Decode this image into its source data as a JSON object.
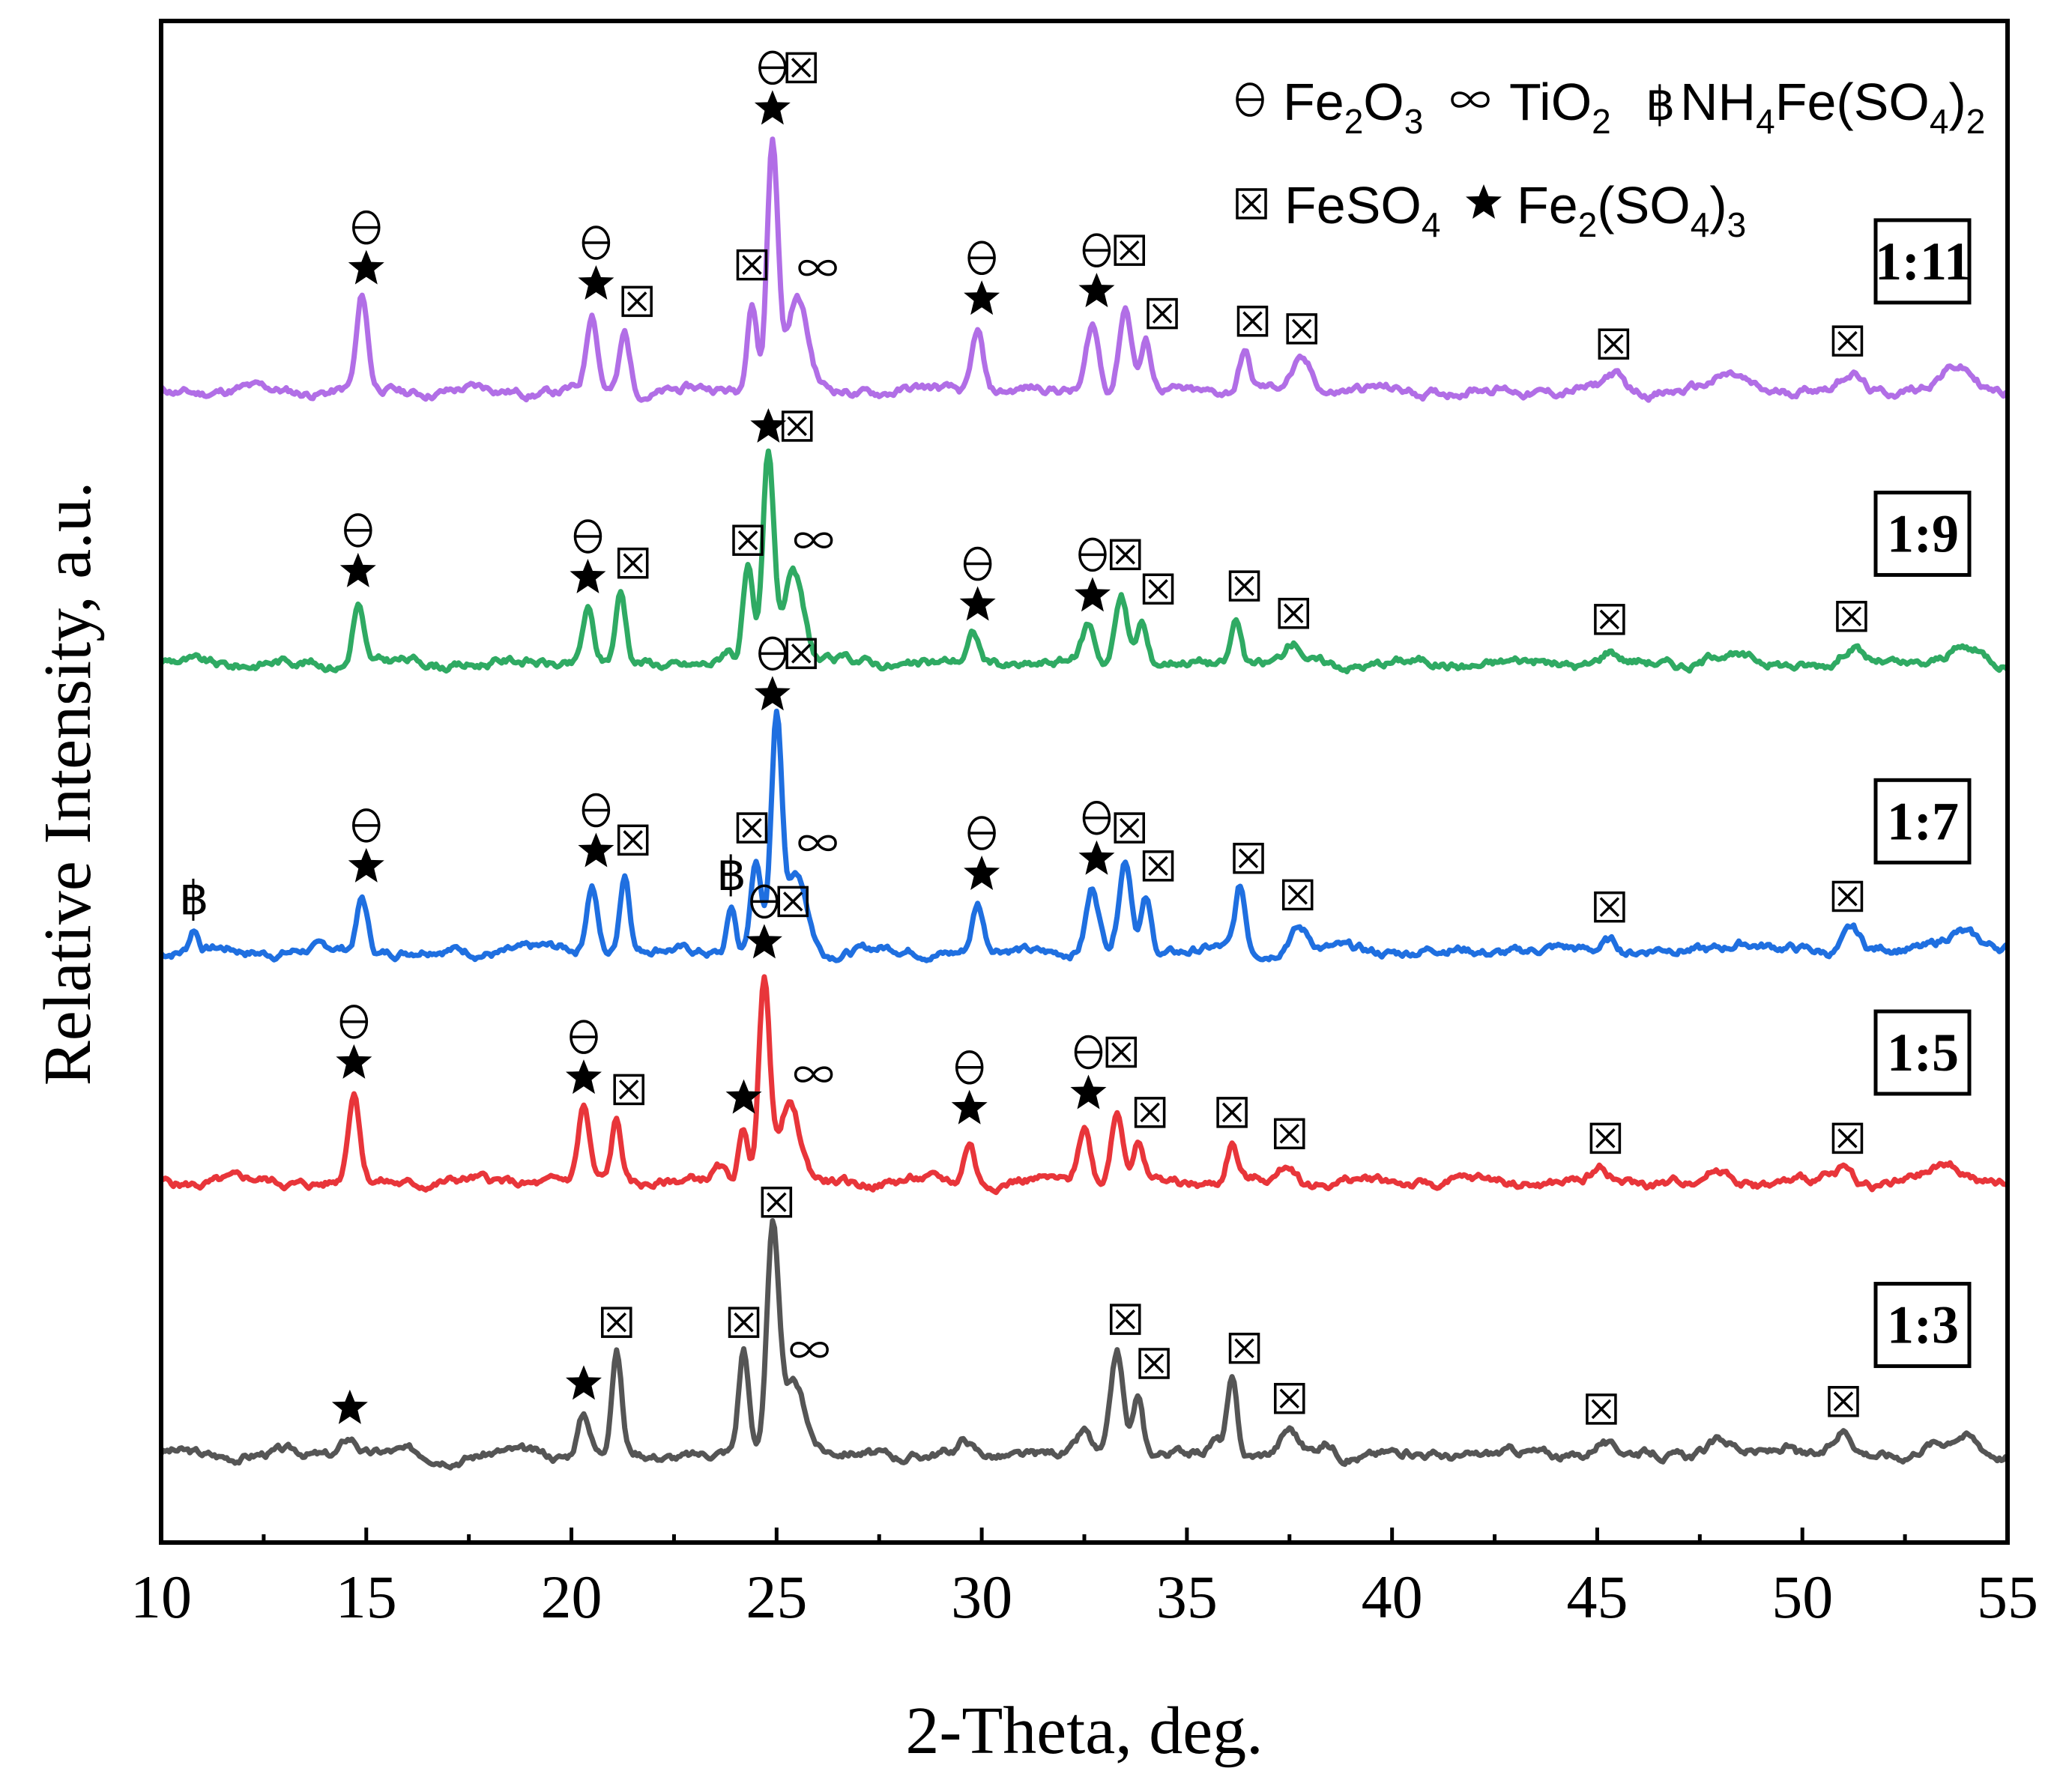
{
  "chart_data": {
    "type": "line",
    "title": "",
    "xlabel": "2-Theta, deg.",
    "ylabel": "Relative Intensity, a.u.",
    "xlim": [
      10,
      55
    ],
    "ylim": [
      0,
      1
    ],
    "x_ticks": [
      10,
      15,
      20,
      25,
      30,
      35,
      40,
      45,
      50,
      55
    ],
    "x_tick_labels": [
      "10",
      "15",
      "20",
      "25",
      "30",
      "35",
      "40",
      "45",
      "50",
      "55"
    ],
    "grid": false,
    "legend_position": "top-right",
    "legend": [
      {
        "symbol": "theta",
        "label": "Fe2O3"
      },
      {
        "symbol": "infinity",
        "label": "TiO2"
      },
      {
        "symbol": "baht",
        "label": "NH4Fe(SO4)2"
      },
      {
        "symbol": "box",
        "label": "FeSO4"
      },
      {
        "symbol": "star",
        "label": "Fe2(SO4)3"
      }
    ],
    "legend_text": {
      "theta_glyph": "⊖",
      "infinity_glyph": "∞",
      "baht_glyph": "฿",
      "fe2o3": {
        "a": "Fe",
        "sub1": "2",
        "b": "O",
        "sub2": "3"
      },
      "tio2": {
        "a": "TiO",
        "sub1": "2"
      },
      "nh4": {
        "a": "NH",
        "sub1": "4",
        "b": "Fe(SO",
        "sub2": "4",
        "c": ")",
        "sub3": "2"
      },
      "feso4": {
        "a": "FeSO",
        "sub1": "4"
      },
      "fe2so43": {
        "a": "Fe",
        "sub1": "2",
        "b": "(SO",
        "sub2": "4",
        "c": ")",
        "sub3": "3"
      }
    },
    "series": [
      {
        "name": "1:3",
        "color": "#555555",
        "baseline": 0.058,
        "noise_seed": 3,
        "peaks": [
          [
            14.6,
            0.012,
            0.2
          ],
          [
            20.3,
            0.028,
            0.15
          ],
          [
            21.1,
            0.068,
            0.12
          ],
          [
            24.2,
            0.068,
            0.12
          ],
          [
            24.9,
            0.143,
            0.14
          ],
          [
            25.4,
            0.048,
            0.3
          ],
          [
            29.6,
            0.008,
            0.15
          ],
          [
            32.5,
            0.013,
            0.15
          ],
          [
            33.3,
            0.068,
            0.15
          ],
          [
            33.8,
            0.038,
            0.12
          ],
          [
            35.7,
            0.01,
            0.15
          ],
          [
            36.1,
            0.049,
            0.12
          ],
          [
            37.5,
            0.015,
            0.2
          ],
          [
            38.4,
            0.008,
            0.2
          ],
          [
            45.1,
            0.009,
            0.2
          ],
          [
            48.0,
            0.008,
            0.3
          ],
          [
            49.6,
            0.006,
            0.2
          ],
          [
            51.0,
            0.014,
            0.2
          ],
          [
            53.1,
            0.008,
            0.3
          ],
          [
            53.9,
            0.012,
            0.3
          ]
        ],
        "markers": [
          {
            "x": 14.6,
            "level": 0.01,
            "symbols": [
              "star"
            ]
          },
          {
            "x": 20.3,
            "level": 0.026,
            "symbols": [
              "star"
            ]
          },
          {
            "x": 21.1,
            "level": 0.066,
            "symbols": [
              "box"
            ]
          },
          {
            "x": 24.2,
            "level": 0.066,
            "symbols": [
              "box"
            ]
          },
          {
            "x": 25.0,
            "level": 0.145,
            "symbols": [
              "box"
            ]
          },
          {
            "x": 25.8,
            "level": 0.048,
            "symbols": [
              "infinity"
            ]
          },
          {
            "x": 33.5,
            "level": 0.068,
            "symbols": [
              "box"
            ]
          },
          {
            "x": 34.2,
            "level": 0.039,
            "symbols": [
              "box"
            ]
          },
          {
            "x": 36.4,
            "level": 0.049,
            "symbols": [
              "box"
            ]
          },
          {
            "x": 37.5,
            "level": 0.016,
            "symbols": [
              "box"
            ]
          },
          {
            "x": 45.1,
            "level": 0.009,
            "symbols": [
              "box"
            ]
          },
          {
            "x": 51.0,
            "level": 0.014,
            "symbols": [
              "box"
            ]
          }
        ]
      },
      {
        "name": "1:5",
        "color": "#e8353a",
        "baseline": 0.237,
        "noise_seed": 5,
        "peaks": [
          [
            14.7,
            0.058,
            0.14
          ],
          [
            20.3,
            0.048,
            0.13
          ],
          [
            21.1,
            0.04,
            0.12
          ],
          [
            23.6,
            0.008,
            0.15
          ],
          [
            24.2,
            0.035,
            0.12
          ],
          [
            24.7,
            0.137,
            0.13
          ],
          [
            25.3,
            0.05,
            0.25
          ],
          [
            29.7,
            0.028,
            0.13
          ],
          [
            32.5,
            0.038,
            0.15
          ],
          [
            33.3,
            0.047,
            0.15
          ],
          [
            33.8,
            0.025,
            0.12
          ],
          [
            36.1,
            0.025,
            0.13
          ],
          [
            37.5,
            0.011,
            0.2
          ],
          [
            45.1,
            0.008,
            0.2
          ],
          [
            48.0,
            0.007,
            0.3
          ],
          [
            51.0,
            0.008,
            0.2
          ],
          [
            53.6,
            0.01,
            0.4
          ]
        ],
        "markers": [
          {
            "x": 14.7,
            "level": 0.058,
            "symbols": [
              "star",
              "theta"
            ]
          },
          {
            "x": 20.3,
            "level": 0.048,
            "symbols": [
              "star",
              "theta"
            ]
          },
          {
            "x": 21.4,
            "level": 0.04,
            "symbols": [
              "box"
            ]
          },
          {
            "x": 24.2,
            "level": 0.035,
            "symbols": [
              "star"
            ]
          },
          {
            "x": 24.7,
            "level": 0.137,
            "symbols": [
              "star",
              "theta"
            ],
            "side": {
              "symbol": "box",
              "dx": 0.7
            }
          },
          {
            "x": 25.9,
            "level": 0.05,
            "symbols": [
              "infinity"
            ]
          },
          {
            "x": 29.7,
            "level": 0.028,
            "symbols": [
              "star",
              "theta"
            ]
          },
          {
            "x": 32.6,
            "level": 0.038,
            "symbols": [
              "star",
              "theta"
            ],
            "side": {
              "symbol": "box",
              "dx": 0.8
            }
          },
          {
            "x": 34.1,
            "level": 0.025,
            "symbols": [
              "box"
            ]
          },
          {
            "x": 36.1,
            "level": 0.025,
            "symbols": [
              "box"
            ]
          },
          {
            "x": 37.5,
            "level": 0.011,
            "symbols": [
              "box"
            ]
          },
          {
            "x": 45.2,
            "level": 0.008,
            "symbols": [
              "box"
            ]
          },
          {
            "x": 51.1,
            "level": 0.008,
            "symbols": [
              "box"
            ]
          }
        ]
      },
      {
        "name": "1:7",
        "color": "#1f6fe0",
        "baseline": 0.389,
        "noise_seed": 7,
        "peaks": [
          [
            10.8,
            0.014,
            0.1
          ],
          [
            14.9,
            0.035,
            0.13
          ],
          [
            20.5,
            0.045,
            0.13
          ],
          [
            21.3,
            0.052,
            0.12
          ],
          [
            23.9,
            0.03,
            0.1
          ],
          [
            24.5,
            0.06,
            0.12
          ],
          [
            25.0,
            0.148,
            0.13
          ],
          [
            25.5,
            0.05,
            0.25
          ],
          [
            29.9,
            0.03,
            0.13
          ],
          [
            32.7,
            0.04,
            0.15
          ],
          [
            33.5,
            0.06,
            0.15
          ],
          [
            34.0,
            0.035,
            0.12
          ],
          [
            36.3,
            0.04,
            0.12
          ],
          [
            37.7,
            0.016,
            0.25
          ],
          [
            45.3,
            0.008,
            0.2
          ],
          [
            48.5,
            0.006,
            0.4
          ],
          [
            51.2,
            0.015,
            0.2
          ],
          [
            53.8,
            0.014,
            0.4
          ]
        ],
        "markers": [
          {
            "x": 10.8,
            "level": 0.014,
            "symbols": [
              "baht"
            ]
          },
          {
            "x": 15.0,
            "level": 0.035,
            "symbols": [
              "star",
              "theta"
            ]
          },
          {
            "x": 20.6,
            "level": 0.045,
            "symbols": [
              "star",
              "theta"
            ]
          },
          {
            "x": 21.5,
            "level": 0.052,
            "symbols": [
              "box"
            ]
          },
          {
            "x": 23.9,
            "level": 0.03,
            "symbols": [
              "baht"
            ]
          },
          {
            "x": 24.4,
            "level": 0.06,
            "symbols": [
              "box"
            ]
          },
          {
            "x": 24.9,
            "level": 0.148,
            "symbols": [
              "star",
              "theta"
            ],
            "side": {
              "symbol": "box",
              "dx": 0.7
            }
          },
          {
            "x": 26.0,
            "level": 0.05,
            "symbols": [
              "infinity"
            ]
          },
          {
            "x": 30.0,
            "level": 0.03,
            "symbols": [
              "star",
              "theta"
            ]
          },
          {
            "x": 32.8,
            "level": 0.04,
            "symbols": [
              "star",
              "theta"
            ]
          },
          {
            "x": 33.6,
            "level": 0.06,
            "symbols": [
              "box"
            ]
          },
          {
            "x": 34.3,
            "level": 0.035,
            "symbols": [
              "box"
            ]
          },
          {
            "x": 36.5,
            "level": 0.04,
            "symbols": [
              "box"
            ]
          },
          {
            "x": 37.7,
            "level": 0.016,
            "symbols": [
              "box"
            ]
          },
          {
            "x": 45.3,
            "level": 0.008,
            "symbols": [
              "box"
            ]
          },
          {
            "x": 51.1,
            "level": 0.015,
            "symbols": [
              "box"
            ]
          }
        ]
      },
      {
        "name": "1:9",
        "color": "#2faa63",
        "baseline": 0.578,
        "noise_seed": 9,
        "peaks": [
          [
            14.8,
            0.04,
            0.13
          ],
          [
            20.4,
            0.036,
            0.13
          ],
          [
            21.2,
            0.045,
            0.12
          ],
          [
            23.8,
            0.008,
            0.12
          ],
          [
            24.3,
            0.06,
            0.12
          ],
          [
            24.8,
            0.135,
            0.13
          ],
          [
            25.4,
            0.06,
            0.25
          ],
          [
            29.8,
            0.018,
            0.13
          ],
          [
            32.6,
            0.024,
            0.15
          ],
          [
            33.4,
            0.045,
            0.15
          ],
          [
            33.9,
            0.028,
            0.12
          ],
          [
            36.2,
            0.03,
            0.12
          ],
          [
            37.6,
            0.012,
            0.2
          ],
          [
            45.3,
            0.008,
            0.2
          ],
          [
            48.0,
            0.007,
            0.3
          ],
          [
            51.2,
            0.01,
            0.2
          ],
          [
            53.9,
            0.008,
            0.4
          ]
        ],
        "markers": [
          {
            "x": 14.8,
            "level": 0.04,
            "symbols": [
              "star",
              "theta"
            ]
          },
          {
            "x": 20.4,
            "level": 0.036,
            "symbols": [
              "star",
              "theta"
            ]
          },
          {
            "x": 21.5,
            "level": 0.045,
            "symbols": [
              "box"
            ]
          },
          {
            "x": 24.3,
            "level": 0.06,
            "symbols": [
              "box"
            ]
          },
          {
            "x": 24.8,
            "level": 0.135,
            "symbols": [
              "star"
            ],
            "side": {
              "symbol": "box",
              "dx": 0.7
            }
          },
          {
            "x": 25.9,
            "level": 0.06,
            "symbols": [
              "infinity"
            ]
          },
          {
            "x": 29.9,
            "level": 0.018,
            "symbols": [
              "star",
              "theta"
            ]
          },
          {
            "x": 32.7,
            "level": 0.024,
            "symbols": [
              "star",
              "theta"
            ],
            "side": {
              "symbol": "box",
              "dx": 0.8
            }
          },
          {
            "x": 34.3,
            "level": 0.028,
            "symbols": [
              "box"
            ]
          },
          {
            "x": 36.4,
            "level": 0.03,
            "symbols": [
              "box"
            ]
          },
          {
            "x": 37.6,
            "level": 0.012,
            "symbols": [
              "box"
            ]
          },
          {
            "x": 45.3,
            "level": 0.008,
            "symbols": [
              "box"
            ]
          },
          {
            "x": 51.2,
            "level": 0.01,
            "symbols": [
              "box"
            ]
          }
        ]
      },
      {
        "name": "1:11",
        "color": "#b16ee6",
        "baseline": 0.757,
        "noise_seed": 11,
        "peaks": [
          [
            14.9,
            0.06,
            0.13
          ],
          [
            20.5,
            0.05,
            0.13
          ],
          [
            21.3,
            0.038,
            0.12
          ],
          [
            24.4,
            0.062,
            0.12
          ],
          [
            24.9,
            0.165,
            0.13
          ],
          [
            25.5,
            0.06,
            0.25
          ],
          [
            29.9,
            0.04,
            0.13
          ],
          [
            32.7,
            0.045,
            0.15
          ],
          [
            33.5,
            0.055,
            0.15
          ],
          [
            34.0,
            0.03,
            0.12
          ],
          [
            36.4,
            0.025,
            0.12
          ],
          [
            37.8,
            0.02,
            0.25
          ],
          [
            45.4,
            0.01,
            0.2
          ],
          [
            48.3,
            0.009,
            0.4
          ],
          [
            51.2,
            0.012,
            0.25
          ],
          [
            53.8,
            0.015,
            0.4
          ]
        ],
        "markers": [
          {
            "x": 15.0,
            "level": 0.06,
            "symbols": [
              "star",
              "theta"
            ]
          },
          {
            "x": 20.6,
            "level": 0.05,
            "symbols": [
              "star",
              "theta"
            ]
          },
          {
            "x": 21.6,
            "level": 0.038,
            "symbols": [
              "box"
            ]
          },
          {
            "x": 24.4,
            "level": 0.062,
            "symbols": [
              "box"
            ]
          },
          {
            "x": 24.9,
            "level": 0.165,
            "symbols": [
              "star",
              "theta"
            ],
            "side": {
              "symbol": "box",
              "dx": 0.7
            }
          },
          {
            "x": 26.0,
            "level": 0.06,
            "symbols": [
              "infinity"
            ]
          },
          {
            "x": 30.0,
            "level": 0.04,
            "symbols": [
              "star",
              "theta"
            ]
          },
          {
            "x": 32.8,
            "level": 0.045,
            "symbols": [
              "star",
              "theta"
            ],
            "side": {
              "symbol": "box",
              "dx": 0.8
            }
          },
          {
            "x": 34.4,
            "level": 0.03,
            "symbols": [
              "box"
            ]
          },
          {
            "x": 36.6,
            "level": 0.025,
            "symbols": [
              "box"
            ]
          },
          {
            "x": 37.8,
            "level": 0.02,
            "symbols": [
              "box"
            ]
          },
          {
            "x": 45.4,
            "level": 0.01,
            "symbols": [
              "box"
            ]
          },
          {
            "x": 51.1,
            "level": 0.012,
            "symbols": [
              "box"
            ]
          }
        ]
      }
    ]
  }
}
